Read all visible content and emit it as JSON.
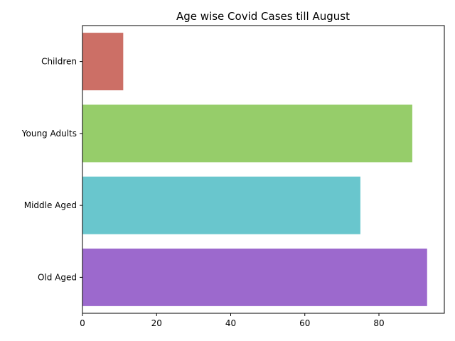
{
  "chart_data": {
    "type": "bar",
    "orientation": "horizontal",
    "title": "Age wise Covid Cases till August",
    "xlabel": "",
    "ylabel": "",
    "categories": [
      "Children",
      "Young Adults",
      "Middle Aged",
      "Old Aged"
    ],
    "values": [
      11,
      89,
      75,
      93
    ],
    "colors": [
      "#cc6f66",
      "#96cd6a",
      "#69c6cd",
      "#9c69cd"
    ],
    "xlim": [
      0,
      97.65
    ],
    "xticks": [
      0,
      20,
      40,
      60,
      80
    ],
    "grid": false,
    "legend": "none"
  }
}
